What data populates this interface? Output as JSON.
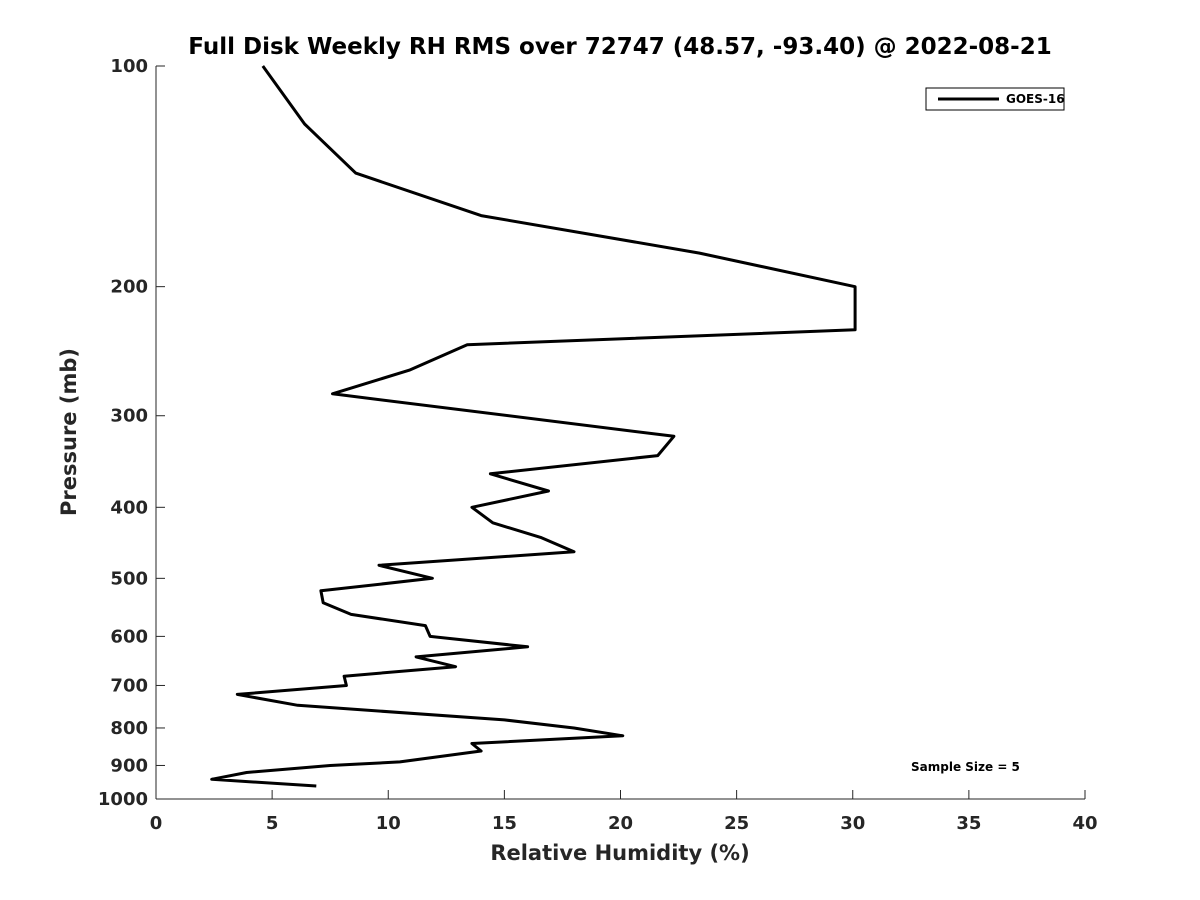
{
  "chart_data": {
    "type": "line",
    "title": "Full Disk Weekly RH RMS over 72747 (48.57, -93.40) @ 2022-08-21",
    "xlabel": "Relative Humidity (%)",
    "ylabel": "Pressure (mb)",
    "xlim": [
      0,
      40
    ],
    "ylim": [
      100,
      1000
    ],
    "yscale": "log",
    "y_reversed": true,
    "grid": false,
    "xticks": [
      "0",
      "5",
      "10",
      "15",
      "20",
      "25",
      "30",
      "35",
      "40"
    ],
    "yticks": [
      "100",
      "200",
      "300",
      "400",
      "500",
      "600",
      "700",
      "800",
      "900",
      "1000"
    ],
    "legend": {
      "placement": "top-right",
      "entries": [
        "GOES-16"
      ]
    },
    "annotation": "Sample Size = 5",
    "series": [
      {
        "name": "GOES-16",
        "color": "#000000",
        "x": [
          4.6,
          6.4,
          8.6,
          14.0,
          23.4,
          30.1,
          30.1,
          13.4,
          10.9,
          7.6,
          22.3,
          21.6,
          14.4,
          16.9,
          13.6,
          14.5,
          16.6,
          18.0,
          9.6,
          11.9,
          7.1,
          7.2,
          8.4,
          11.6,
          11.8,
          16.0,
          11.2,
          12.9,
          8.1,
          8.2,
          3.5,
          6.1,
          15.0,
          18.0,
          20.1,
          13.6,
          14.0,
          10.5,
          7.5,
          3.9,
          2.4,
          6.9
        ],
        "y": [
          100,
          120,
          140,
          160,
          180,
          200,
          229,
          240,
          260,
          280,
          320,
          340,
          360,
          380,
          400,
          420,
          440,
          460,
          480,
          500,
          520,
          540,
          560,
          580,
          600,
          620,
          640,
          660,
          680,
          700,
          720,
          745,
          780,
          800,
          820,
          840,
          860,
          890,
          900,
          920,
          940,
          960
        ]
      }
    ]
  }
}
